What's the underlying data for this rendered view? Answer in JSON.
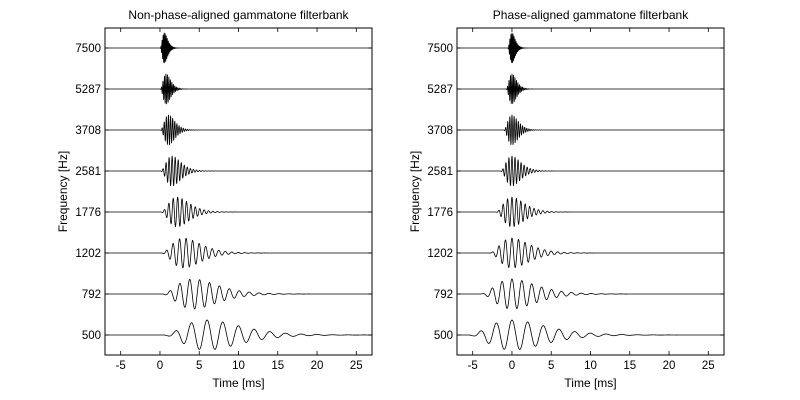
{
  "chart_data": [
    {
      "type": "line",
      "title": "Non-phase-aligned gammatone filterbank",
      "xlabel": "Time [ms]",
      "ylabel": "Frequency [Hz]",
      "xlim": [
        -7,
        27
      ],
      "x_ticks": [
        "-5",
        "0",
        "5",
        "10",
        "15",
        "20",
        "25"
      ],
      "x_tick_values": [
        -5,
        0,
        5,
        10,
        15,
        20,
        25
      ],
      "channels_hz": [
        "7500",
        "5287",
        "3708",
        "2581",
        "1776",
        "1202",
        "792",
        "500"
      ],
      "channel_frequencies": [
        7500,
        5287,
        3708,
        2581,
        1776,
        1202,
        792,
        500
      ],
      "phase_aligned": false,
      "grid": false
    },
    {
      "type": "line",
      "title": "Phase-aligned gammatone filterbank",
      "xlabel": "Time [ms]",
      "ylabel": "Frequency [Hz]",
      "xlim": [
        -7,
        27
      ],
      "x_ticks": [
        "-5",
        "0",
        "5",
        "10",
        "15",
        "20",
        "25"
      ],
      "x_tick_values": [
        -5,
        0,
        5,
        10,
        15,
        20,
        25
      ],
      "channels_hz": [
        "7500",
        "5287",
        "3708",
        "2581",
        "1776",
        "1202",
        "792",
        "500"
      ],
      "channel_frequencies": [
        7500,
        5287,
        3708,
        2581,
        1776,
        1202,
        792,
        500
      ],
      "phase_aligned": true,
      "grid": false
    }
  ]
}
